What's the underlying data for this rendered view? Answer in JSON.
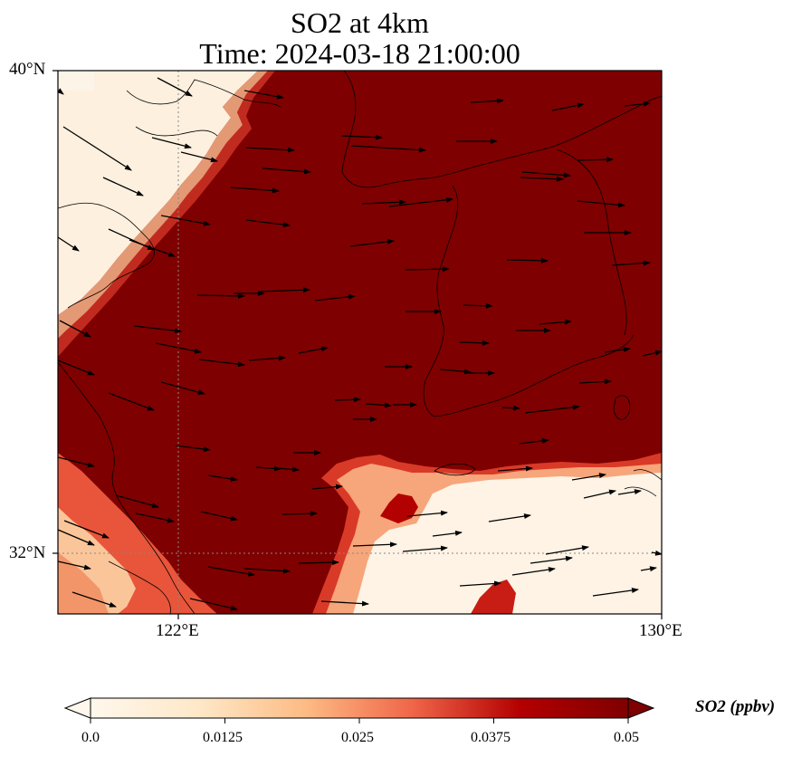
{
  "title": {
    "line1": "SO2 at 4km",
    "line2": "Time: 2024-03-18 21:00:00"
  },
  "map": {
    "lat_ticks": [
      "40°N",
      "32°N"
    ],
    "lon_ticks": [
      "122°E",
      "130°E"
    ],
    "extent": {
      "lon": [
        120,
        130
      ],
      "lat": [
        31,
        40
      ]
    }
  },
  "colorbar": {
    "label": "SO2 (ppbv)",
    "ticks": [
      "0.0",
      "0.0125",
      "0.025",
      "0.0375",
      "0.05"
    ],
    "range": [
      0,
      0.05
    ],
    "colormap": "OrRd",
    "colors": [
      "#fff7ec",
      "#fdd49e",
      "#fc8d59",
      "#d7301f",
      "#7f0000"
    ]
  }
}
